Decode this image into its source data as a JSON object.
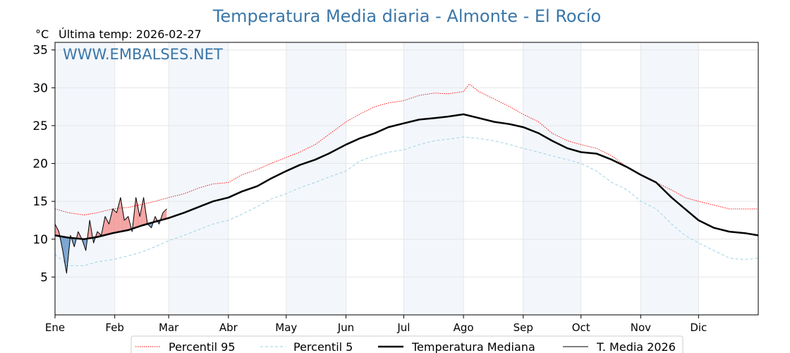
{
  "header": {
    "title": "Temperatura Media diaria - Almonte - El Rocío",
    "unit": "°C",
    "last_temp": "Última temp: 2026-02-27",
    "watermark": "WWW.EMBALSES.NET"
  },
  "colors": {
    "p95": "#ff0000",
    "p5": "#add8e6",
    "median": "#000000",
    "current": "#000000",
    "above_fill": "#f4a3a3",
    "below_fill": "#7ba6d2",
    "band": "#f3f7fc",
    "title": "#3a76a8"
  },
  "chart_data": {
    "type": "line",
    "title": "Temperatura Media diaria - Almonte - El Rocío",
    "ylabel": "°C",
    "ylim": [
      0,
      36
    ],
    "yticks": [
      5,
      10,
      15,
      20,
      25,
      30,
      35
    ],
    "xlim": [
      0,
      365
    ],
    "months": [
      {
        "label": "Ene",
        "day": 0
      },
      {
        "label": "Feb",
        "day": 31
      },
      {
        "label": "Mar",
        "day": 59
      },
      {
        "label": "Abr",
        "day": 90
      },
      {
        "label": "May",
        "day": 120
      },
      {
        "label": "Jun",
        "day": 151
      },
      {
        "label": "Jul",
        "day": 181
      },
      {
        "label": "Ago",
        "day": 212
      },
      {
        "label": "Sep",
        "day": 243
      },
      {
        "label": "Oct",
        "day": 273
      },
      {
        "label": "Nov",
        "day": 304
      },
      {
        "label": "Dic",
        "day": 334
      }
    ],
    "grid": true,
    "legend_position": "bottom-center",
    "series": [
      {
        "name": "Percentil 95",
        "style": "dotted",
        "x": [
          0,
          7,
          15,
          22,
          30,
          38,
          45,
          52,
          59,
          67,
          75,
          82,
          90,
          97,
          105,
          112,
          120,
          127,
          135,
          142,
          151,
          158,
          166,
          173,
          181,
          189,
          197,
          204,
          212,
          215,
          220,
          228,
          236,
          243,
          251,
          258,
          266,
          273,
          281,
          289,
          297,
          304,
          312,
          320,
          327,
          334,
          342,
          350,
          358,
          365
        ],
        "y": [
          14,
          13.5,
          13.2,
          13.5,
          14,
          14.2,
          14.6,
          15,
          15.5,
          16,
          16.8,
          17.3,
          17.5,
          18.5,
          19.2,
          20,
          20.8,
          21.5,
          22.5,
          23.8,
          25.5,
          26.5,
          27.5,
          28,
          28.3,
          29,
          29.3,
          29.2,
          29.5,
          30.5,
          29.5,
          28.5,
          27.5,
          26.5,
          25.5,
          24,
          23,
          22.5,
          22,
          21,
          19.5,
          18.5,
          17.5,
          16.5,
          15.5,
          15,
          14.5,
          14,
          14,
          14
        ]
      },
      {
        "name": "Percentil 5",
        "style": "dashed",
        "x": [
          0,
          7,
          15,
          22,
          30,
          38,
          45,
          52,
          59,
          67,
          75,
          82,
          90,
          97,
          105,
          112,
          120,
          127,
          135,
          142,
          151,
          158,
          166,
          173,
          181,
          189,
          197,
          204,
          212,
          220,
          228,
          236,
          243,
          251,
          258,
          266,
          273,
          281,
          289,
          297,
          304,
          312,
          320,
          327,
          334,
          342,
          350,
          358,
          365
        ],
        "y": [
          8,
          6.5,
          6.5,
          7,
          7.3,
          7.8,
          8.3,
          9,
          9.8,
          10.5,
          11.3,
          12,
          12.5,
          13.3,
          14.3,
          15.3,
          16,
          16.8,
          17.5,
          18.2,
          19,
          20.3,
          21,
          21.5,
          21.8,
          22.5,
          23,
          23.2,
          23.5,
          23.3,
          23,
          22.5,
          22,
          21.5,
          21,
          20.5,
          20,
          19,
          17.5,
          16.5,
          15,
          14,
          12,
          10.5,
          9.5,
          8.5,
          7.5,
          7.3,
          7.5
        ]
      },
      {
        "name": "Temperatura Mediana",
        "style": "solid-bold",
        "x": [
          0,
          7,
          15,
          22,
          30,
          38,
          45,
          52,
          59,
          67,
          75,
          82,
          90,
          97,
          105,
          112,
          120,
          127,
          135,
          142,
          151,
          158,
          166,
          173,
          181,
          189,
          197,
          204,
          212,
          220,
          228,
          236,
          243,
          251,
          258,
          266,
          273,
          281,
          289,
          297,
          304,
          312,
          320,
          327,
          334,
          342,
          350,
          358,
          365
        ],
        "y": [
          10.5,
          10.2,
          10,
          10.3,
          10.8,
          11.2,
          11.8,
          12.3,
          12.8,
          13.5,
          14.3,
          15,
          15.5,
          16.3,
          17,
          18,
          19,
          19.8,
          20.5,
          21.3,
          22.5,
          23.3,
          24,
          24.8,
          25.3,
          25.8,
          26,
          26.2,
          26.5,
          26,
          25.5,
          25.2,
          24.8,
          24,
          23,
          22,
          21.5,
          21.3,
          20.5,
          19.5,
          18.5,
          17.5,
          15.5,
          14,
          12.5,
          11.5,
          11,
          10.8,
          10.5
        ]
      },
      {
        "name": "T. Media 2026",
        "style": "solid",
        "x": [
          0,
          2,
          4,
          6,
          8,
          10,
          12,
          14,
          16,
          18,
          20,
          22,
          24,
          26,
          28,
          30,
          32,
          34,
          36,
          38,
          40,
          42,
          44,
          46,
          48,
          50,
          52,
          54,
          56,
          58
        ],
        "y": [
          12,
          11,
          8.5,
          5.5,
          10.5,
          9,
          11,
          10,
          8.5,
          12.5,
          9.5,
          11,
          10.5,
          13,
          12,
          14,
          13.5,
          15.5,
          12.5,
          13,
          11,
          15.5,
          13,
          15.5,
          12,
          11.5,
          13,
          12,
          13.5,
          14
        ]
      }
    ]
  }
}
